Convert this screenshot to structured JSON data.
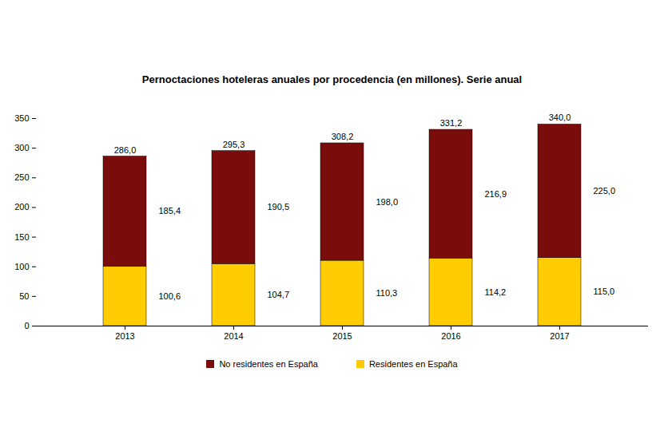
{
  "chart_data": {
    "type": "bar",
    "title": "Pernoctaciones hoteleras anuales por procedencia (en millones). Serie anual",
    "categories": [
      "2013",
      "2014",
      "2015",
      "2016",
      "2017"
    ],
    "series": [
      {
        "name": "No residentes en España",
        "color": "#7b0c0c",
        "values": [
          185.4,
          190.5,
          198.0,
          216.9,
          225.0
        ],
        "value_labels": [
          "185,4",
          "190,5",
          "198,0",
          "216,9",
          "225,0"
        ]
      },
      {
        "name": "Residentes en España",
        "color": "#ffcc00",
        "values": [
          100.6,
          104.7,
          110.3,
          114.2,
          115.0
        ],
        "value_labels": [
          "100,6",
          "104,7",
          "110,3",
          "114,2",
          "115,0"
        ]
      }
    ],
    "totals": [
      286.0,
      295.3,
      308.2,
      331.2,
      340.0
    ],
    "total_labels": [
      "286,0",
      "295,3",
      "308,2",
      "331,2",
      "340,0"
    ],
    "ylim": [
      0,
      350
    ],
    "yticks": [
      0,
      50,
      100,
      150,
      200,
      250,
      300,
      350
    ],
    "stacked": true,
    "data_labels": true,
    "grid": false,
    "legend": "bottom"
  }
}
